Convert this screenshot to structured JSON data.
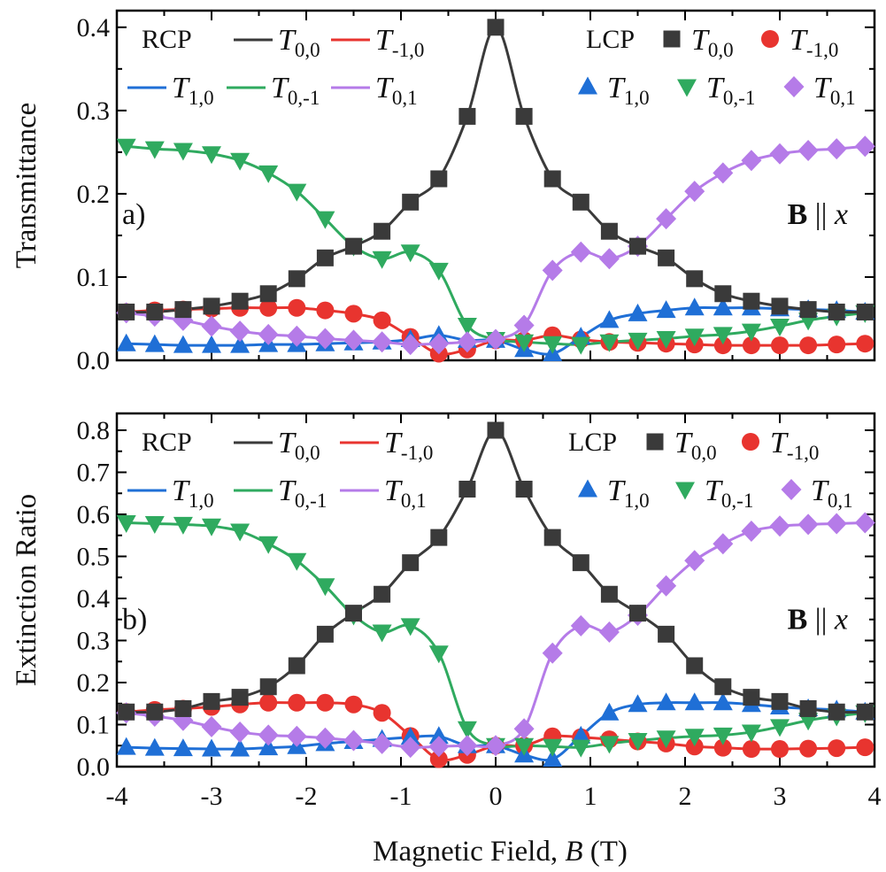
{
  "figure": {
    "xlabel_prefix": "Magnetic Field, ",
    "xlabel_var": "B",
    "xlabel_unit": " (T)"
  },
  "colors": {
    "T00": "#3a3a3a",
    "Tm10": "#e8342f",
    "T10": "#1f6fd6",
    "T0m1": "#2faa5f",
    "T01": "#b57be8"
  },
  "chart_data": [
    {
      "type": "line",
      "panel_label": "a)",
      "ylabel": "Transmittance",
      "xlim": [
        -4,
        4
      ],
      "ylim": [
        0,
        0.42
      ],
      "xticks": [
        -4,
        -3,
        -2,
        -1,
        0,
        1,
        2,
        3,
        4
      ],
      "yticks": [
        0.0,
        0.1,
        0.2,
        0.3,
        0.4
      ],
      "ytick_labels": [
        "0.0",
        "0.1",
        "0.2",
        "0.3",
        "0.4"
      ],
      "annotation": {
        "bold": "B",
        "rest": " || ",
        "italic": "x"
      },
      "legend_rcp_title": "RCP",
      "legend_lcp_title": "LCP",
      "marker_x": [
        -3.9,
        -3.6,
        -3.3,
        -3.0,
        -2.7,
        -2.4,
        -2.1,
        -1.8,
        -1.5,
        -1.2,
        -0.9,
        -0.6,
        -0.3,
        0.0,
        0.3,
        0.6,
        0.9,
        1.2,
        1.5,
        1.8,
        2.1,
        2.4,
        2.7,
        3.0,
        3.3,
        3.6,
        3.9
      ],
      "series": [
        {
          "key": "T00",
          "name": "T_{0,0}",
          "sub": "0,0",
          "marker": "square",
          "values": [
            0.058,
            0.058,
            0.061,
            0.065,
            0.071,
            0.08,
            0.098,
            0.123,
            0.137,
            0.155,
            0.19,
            0.218,
            0.293,
            0.4,
            0.293,
            0.218,
            0.19,
            0.155,
            0.137,
            0.123,
            0.098,
            0.08,
            0.071,
            0.065,
            0.061,
            0.058,
            0.058
          ]
        },
        {
          "key": "Tm10",
          "name": "T_{-1,0}",
          "sub": "-1,0",
          "marker": "circle",
          "values": [
            0.058,
            0.06,
            0.061,
            0.062,
            0.063,
            0.063,
            0.063,
            0.06,
            0.056,
            0.048,
            0.028,
            0.008,
            0.013,
            0.024,
            0.024,
            0.03,
            0.025,
            0.022,
            0.021,
            0.02,
            0.019,
            0.018,
            0.018,
            0.018,
            0.018,
            0.019,
            0.02
          ]
        },
        {
          "key": "T10",
          "name": "T_{1,0}",
          "sub": "1,0",
          "marker": "triangle-up",
          "values": [
            0.02,
            0.019,
            0.018,
            0.018,
            0.018,
            0.019,
            0.019,
            0.02,
            0.021,
            0.022,
            0.025,
            0.03,
            0.024,
            0.024,
            0.013,
            0.008,
            0.028,
            0.048,
            0.056,
            0.06,
            0.063,
            0.063,
            0.063,
            0.062,
            0.061,
            0.06,
            0.058
          ]
        },
        {
          "key": "T0m1",
          "name": "T_{0,-1}",
          "sub": "0,-1",
          "marker": "triangle-down",
          "values": [
            0.257,
            0.254,
            0.252,
            0.248,
            0.24,
            0.225,
            0.203,
            0.17,
            0.137,
            0.122,
            0.13,
            0.108,
            0.042,
            0.025,
            0.022,
            0.02,
            0.019,
            0.022,
            0.024,
            0.026,
            0.029,
            0.031,
            0.035,
            0.041,
            0.048,
            0.053,
            0.057
          ]
        },
        {
          "key": "T01",
          "name": "T_{0,1}",
          "sub": "0,1",
          "marker": "diamond",
          "values": [
            0.057,
            0.053,
            0.048,
            0.041,
            0.035,
            0.031,
            0.029,
            0.026,
            0.024,
            0.022,
            0.019,
            0.02,
            0.022,
            0.025,
            0.042,
            0.108,
            0.13,
            0.122,
            0.137,
            0.17,
            0.203,
            0.225,
            0.24,
            0.248,
            0.252,
            0.254,
            0.257
          ]
        }
      ]
    },
    {
      "type": "line",
      "panel_label": "b)",
      "ylabel": "Extinction Ratio",
      "xlim": [
        -4,
        4
      ],
      "ylim": [
        0,
        0.84
      ],
      "xticks": [
        -4,
        -3,
        -2,
        -1,
        0,
        1,
        2,
        3,
        4
      ],
      "xtick_labels": [
        "-4",
        "-3",
        "-2",
        "-1",
        "0",
        "1",
        "2",
        "3",
        "4"
      ],
      "yticks": [
        0.0,
        0.1,
        0.2,
        0.3,
        0.4,
        0.5,
        0.6,
        0.7,
        0.8
      ],
      "ytick_labels": [
        "0.0",
        "0.1",
        "0.2",
        "0.3",
        "0.4",
        "0.5",
        "0.6",
        "0.7",
        "0.8"
      ],
      "annotation": {
        "bold": "B",
        "rest": " || ",
        "italic": "x"
      },
      "legend_rcp_title": "RCP",
      "legend_lcp_title": "LCP",
      "marker_x": [
        -3.9,
        -3.6,
        -3.3,
        -3.0,
        -2.7,
        -2.4,
        -2.1,
        -1.8,
        -1.5,
        -1.2,
        -0.9,
        -0.6,
        -0.3,
        0.0,
        0.3,
        0.6,
        0.9,
        1.2,
        1.5,
        1.8,
        2.1,
        2.4,
        2.7,
        3.0,
        3.3,
        3.6,
        3.9
      ],
      "series": [
        {
          "key": "T00",
          "name": "T_{0,0}",
          "sub": "0,0",
          "marker": "square",
          "values": [
            0.13,
            0.13,
            0.138,
            0.155,
            0.165,
            0.19,
            0.24,
            0.315,
            0.365,
            0.41,
            0.485,
            0.545,
            0.66,
            0.8,
            0.66,
            0.545,
            0.485,
            0.41,
            0.365,
            0.315,
            0.24,
            0.19,
            0.165,
            0.155,
            0.138,
            0.13,
            0.13
          ]
        },
        {
          "key": "Tm10",
          "name": "T_{-1,0}",
          "sub": "-1,0",
          "marker": "circle",
          "values": [
            0.13,
            0.135,
            0.138,
            0.142,
            0.148,
            0.152,
            0.152,
            0.152,
            0.148,
            0.128,
            0.073,
            0.018,
            0.028,
            0.05,
            0.05,
            0.072,
            0.07,
            0.065,
            0.06,
            0.055,
            0.048,
            0.045,
            0.042,
            0.042,
            0.043,
            0.044,
            0.046
          ]
        },
        {
          "key": "T10",
          "name": "T_{1,0}",
          "sub": "1,0",
          "marker": "triangle-up",
          "values": [
            0.046,
            0.044,
            0.043,
            0.042,
            0.042,
            0.045,
            0.048,
            0.055,
            0.06,
            0.065,
            0.07,
            0.072,
            0.05,
            0.05,
            0.028,
            0.018,
            0.073,
            0.128,
            0.148,
            0.152,
            0.152,
            0.152,
            0.148,
            0.142,
            0.138,
            0.135,
            0.13
          ]
        },
        {
          "key": "T0m1",
          "name": "T_{0,-1}",
          "sub": "0,-1",
          "marker": "triangle-down",
          "values": [
            0.58,
            0.578,
            0.576,
            0.572,
            0.56,
            0.53,
            0.49,
            0.43,
            0.36,
            0.32,
            0.335,
            0.27,
            0.09,
            0.05,
            0.05,
            0.048,
            0.046,
            0.055,
            0.062,
            0.068,
            0.072,
            0.075,
            0.082,
            0.095,
            0.11,
            0.12,
            0.128
          ]
        },
        {
          "key": "T01",
          "name": "T_{0,1}",
          "sub": "0,1",
          "marker": "diamond",
          "values": [
            0.128,
            0.12,
            0.11,
            0.095,
            0.082,
            0.075,
            0.072,
            0.068,
            0.062,
            0.055,
            0.046,
            0.048,
            0.05,
            0.05,
            0.09,
            0.27,
            0.335,
            0.32,
            0.36,
            0.43,
            0.49,
            0.53,
            0.56,
            0.572,
            0.576,
            0.578,
            0.58
          ]
        }
      ]
    }
  ]
}
